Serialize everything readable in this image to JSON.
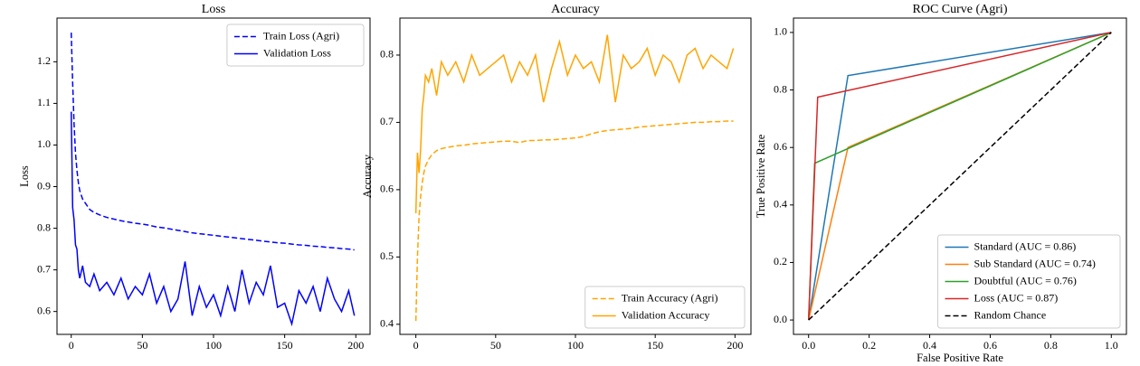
{
  "chart_data": [
    {
      "type": "line",
      "title": "Loss",
      "ylabel": "Loss",
      "xlim": [
        -10,
        210
      ],
      "xticks": [
        0,
        50,
        100,
        150,
        200
      ],
      "ylim": [
        0.545,
        1.305
      ],
      "yticks": [
        0.6,
        0.7,
        0.8,
        0.9,
        {
          "value": 1,
          "label": "1.0"
        },
        1.1,
        1.2
      ],
      "legend": "upper right",
      "series": [
        {
          "name": "Train Loss (Agri)",
          "color": "#0000ff",
          "linestyle": "dashed",
          "x": [
            0,
            1,
            2,
            3,
            4,
            5,
            6,
            8,
            10,
            13,
            16,
            20,
            25,
            30,
            35,
            40,
            45,
            50,
            55,
            60,
            65,
            70,
            75,
            80,
            85,
            90,
            95,
            100,
            105,
            110,
            115,
            120,
            125,
            130,
            135,
            140,
            145,
            150,
            155,
            160,
            165,
            170,
            175,
            180,
            185,
            190,
            195,
            199
          ],
          "values": [
            1.27,
            1.15,
            1.05,
            0.98,
            0.94,
            0.91,
            0.89,
            0.87,
            0.86,
            0.845,
            0.838,
            0.832,
            0.826,
            0.822,
            0.818,
            0.815,
            0.812,
            0.81,
            0.807,
            0.803,
            0.801,
            0.798,
            0.795,
            0.792,
            0.789,
            0.787,
            0.785,
            0.783,
            0.781,
            0.779,
            0.777,
            0.775,
            0.773,
            0.771,
            0.769,
            0.767,
            0.765,
            0.764,
            0.762,
            0.76,
            0.759,
            0.757,
            0.756,
            0.754,
            0.753,
            0.751,
            0.75,
            0.748
          ]
        },
        {
          "name": "Validation Loss",
          "color": "#0000ff",
          "linestyle": "solid",
          "x": [
            0,
            1,
            2,
            3,
            4,
            5,
            6,
            8,
            10,
            13,
            16,
            20,
            25,
            30,
            35,
            40,
            45,
            50,
            55,
            60,
            65,
            70,
            75,
            80,
            85,
            90,
            95,
            100,
            105,
            110,
            115,
            120,
            125,
            130,
            135,
            140,
            145,
            150,
            155,
            160,
            165,
            170,
            175,
            180,
            185,
            190,
            195,
            199
          ],
          "values": [
            1.08,
            0.85,
            0.82,
            0.76,
            0.75,
            0.7,
            0.68,
            0.71,
            0.67,
            0.66,
            0.69,
            0.65,
            0.67,
            0.64,
            0.68,
            0.63,
            0.66,
            0.64,
            0.69,
            0.62,
            0.66,
            0.6,
            0.63,
            0.72,
            0.59,
            0.66,
            0.61,
            0.64,
            0.59,
            0.66,
            0.6,
            0.7,
            0.62,
            0.67,
            0.64,
            0.71,
            0.61,
            0.62,
            0.57,
            0.65,
            0.62,
            0.66,
            0.6,
            0.68,
            0.63,
            0.6,
            0.65,
            0.59
          ]
        }
      ]
    },
    {
      "type": "line",
      "title": "Accuracy",
      "ylabel": "Accuracy",
      "xlim": [
        -10,
        210
      ],
      "xticks": [
        0,
        50,
        100,
        150,
        200
      ],
      "ylim": [
        0.385,
        0.855
      ],
      "yticks": [
        0.4,
        0.5,
        0.6,
        0.7,
        0.8
      ],
      "legend": "lower right",
      "series": [
        {
          "name": "Train Accuracy (Agri)",
          "color": "#ffa500",
          "linestyle": "dashed",
          "x": [
            0,
            1,
            2,
            3,
            4,
            5,
            6,
            8,
            10,
            13,
            16,
            20,
            25,
            30,
            35,
            40,
            45,
            50,
            55,
            60,
            65,
            70,
            75,
            80,
            85,
            90,
            95,
            100,
            105,
            110,
            115,
            120,
            125,
            130,
            135,
            140,
            145,
            150,
            155,
            160,
            165,
            170,
            175,
            180,
            185,
            190,
            195,
            199
          ],
          "values": [
            0.405,
            0.5,
            0.56,
            0.59,
            0.61,
            0.625,
            0.635,
            0.645,
            0.652,
            0.658,
            0.661,
            0.663,
            0.665,
            0.666,
            0.668,
            0.669,
            0.67,
            0.671,
            0.672,
            0.672,
            0.67,
            0.673,
            0.673,
            0.674,
            0.674,
            0.675,
            0.676,
            0.677,
            0.679,
            0.683,
            0.686,
            0.688,
            0.689,
            0.69,
            0.691,
            0.693,
            0.694,
            0.695,
            0.696,
            0.697,
            0.698,
            0.699,
            0.7,
            0.7,
            0.701,
            0.701,
            0.702,
            0.702
          ]
        },
        {
          "name": "Validation Accuracy",
          "color": "#ffa500",
          "linestyle": "solid",
          "x": [
            0,
            1,
            2,
            3,
            4,
            5,
            6,
            8,
            10,
            13,
            16,
            20,
            25,
            30,
            35,
            40,
            45,
            50,
            55,
            60,
            65,
            70,
            75,
            80,
            85,
            90,
            95,
            100,
            105,
            110,
            115,
            120,
            125,
            130,
            135,
            140,
            145,
            150,
            155,
            160,
            165,
            170,
            175,
            180,
            185,
            190,
            195,
            199
          ],
          "values": [
            0.565,
            0.655,
            0.625,
            0.66,
            0.72,
            0.74,
            0.77,
            0.76,
            0.78,
            0.74,
            0.79,
            0.77,
            0.79,
            0.76,
            0.8,
            0.77,
            0.78,
            0.79,
            0.8,
            0.76,
            0.79,
            0.77,
            0.8,
            0.73,
            0.78,
            0.82,
            0.77,
            0.8,
            0.78,
            0.79,
            0.76,
            0.83,
            0.73,
            0.8,
            0.78,
            0.79,
            0.81,
            0.77,
            0.8,
            0.79,
            0.76,
            0.8,
            0.81,
            0.78,
            0.8,
            0.79,
            0.78,
            0.81
          ]
        }
      ]
    },
    {
      "type": "line",
      "title": "ROC Curve (Agri)",
      "xlabel": "False Positive Rate",
      "ylabel": "True Positive Rate",
      "xlim": [
        -0.05,
        1.05
      ],
      "xticks": [
        {
          "value": 0,
          "label": "0.0"
        },
        0.2,
        0.4,
        0.6,
        0.8,
        {
          "value": 1,
          "label": "1.0"
        }
      ],
      "ylim": [
        -0.05,
        1.05
      ],
      "yticks": [
        {
          "value": 0,
          "label": "0.0"
        },
        0.2,
        0.4,
        0.6,
        0.8,
        {
          "value": 1,
          "label": "1.0"
        }
      ],
      "legend": "lower right",
      "series": [
        {
          "name": "Standard (AUC = 0.86)",
          "color": "#1f77b4",
          "linestyle": "solid",
          "x": [
            0,
            0.13,
            1
          ],
          "values": [
            0,
            0.85,
            1
          ]
        },
        {
          "name": "Sub Standard (AUC = 0.74)",
          "color": "#ff7f0e",
          "linestyle": "solid",
          "x": [
            0,
            0.13,
            1
          ],
          "values": [
            0,
            0.6,
            1
          ]
        },
        {
          "name": "Doubtful (AUC = 0.76)",
          "color": "#2ca02c",
          "linestyle": "solid",
          "x": [
            0,
            0.02,
            1
          ],
          "values": [
            0,
            0.545,
            1
          ]
        },
        {
          "name": "Loss (AUC = 0.87)",
          "color": "#d62728",
          "linestyle": "solid",
          "x": [
            0,
            0.03,
            1
          ],
          "values": [
            0,
            0.775,
            1
          ]
        },
        {
          "name": "Random Chance",
          "color": "#000000",
          "linestyle": "dashed",
          "x": [
            0,
            1
          ],
          "values": [
            0,
            1
          ]
        }
      ]
    }
  ]
}
